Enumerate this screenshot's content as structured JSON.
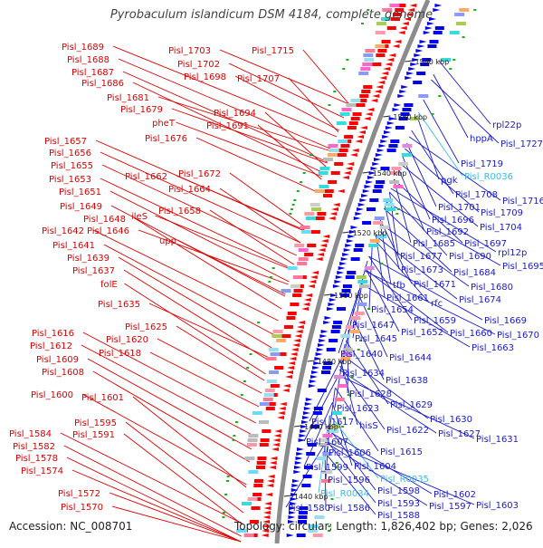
{
  "title": "Pyrobaculum islandicum DSM 4184, complete genome",
  "footer": {
    "accession": "Accession: NC_008701",
    "summary": "Topology: circular; Length: 1,826,402 bp; Genes: 2,026"
  },
  "colors": {
    "left_label": "#dd0000",
    "right_label": "#1a1acc",
    "rna_label": "#33bbee",
    "backbone": "#8c8c8c",
    "forward_arrow": "#ff0000",
    "reverse_arrow": "#0000ee",
    "gc_mark": "#22aa22"
  },
  "ticks": [
    "1580 kbp",
    "1560 kbp",
    "1540 kbp",
    "1520 kbp",
    "1500 kbp",
    "1480 kbp",
    "1460 kbp",
    "1440 kbp"
  ],
  "left_labels": [
    "Pisl_1715",
    "Pisl_1703",
    "Pisl_1689",
    "Pisl_1702",
    "Pisl_1688",
    "Pisl_1707",
    "Pisl_1698",
    "Pisl_1687",
    "Pisl_1686",
    "Pisl_1681",
    "Pisl_1694",
    "Pisl_1679",
    "Pisl_1691",
    "pheT",
    "Pisl_1676",
    "Pisl_1657",
    "Pisl_1656",
    "Pisl_1655",
    "Pisl_1672",
    "Pisl_1662",
    "Pisl_1653",
    "Pisl_1664",
    "Pisl_1651",
    "Pisl_1649",
    "Pisl_1658",
    "Pisl_1648",
    "ileS",
    "Pisl_1642",
    "Pisl_1646",
    "Pisl_1641",
    "upp",
    "Pisl_1639",
    "Pisl_1637",
    "folE",
    "Pisl_1635",
    "Pisl_1625",
    "Pisl_1616",
    "Pisl_1620",
    "Pisl_1612",
    "Pisl_1618",
    "Pisl_1609",
    "Pisl_1608",
    "Pisl_1600",
    "Pisl_1601",
    "Pisl_1595",
    "Pisl_1584",
    "Pisl_1591",
    "Pisl_1582",
    "Pisl_1578",
    "Pisl_1574",
    "Pisl_1572",
    "Pisl_1570"
  ],
  "right_labels": [
    "rpl22p",
    "hppA",
    "Pisl_1727",
    "Pisl_1719",
    "Pisl_R0036",
    "pgk",
    "Pisl_1708",
    "Pisl_1716",
    "Pisl_1701",
    "Pisl_1709",
    "Pisl_1696",
    "Pisl_1704",
    "Pisl_1692",
    "Pisl_1685",
    "Pisl_1697",
    "rpl12p",
    "Pisl_1677",
    "Pisl_1690",
    "Pisl_1695",
    "Pisl_1673",
    "Pisl_1684",
    "tfb",
    "Pisl_1671",
    "Pisl_1680",
    "Pisl_1661",
    "Pisl_1674",
    "rfc",
    "Pisl_1654",
    "Pisl_1669",
    "Pisl_1659",
    "Pisl_1647",
    "Pisl_1652",
    "Pisl_1660",
    "Pisl_1670",
    "Pisl_1645",
    "Pisl_1663",
    "Pisl_1640",
    "Pisl_1644",
    "Pisl_1634",
    "Pisl_1638",
    "Pisl_1628",
    "Pisl_1629",
    "Pisl_1623",
    "Pisl_1630",
    "Pisl_1617",
    "hisS",
    "Pisl_1622",
    "Pisl_1627",
    "Pisl_1631",
    "Pisl_1607",
    "Pisl_1606",
    "Pisl_1615",
    "Pisl_1599",
    "Pisl_1604",
    "Pisl_1596",
    "Pisl_R0035",
    "Pisl_1598",
    "Pisl_1602",
    "Pisl_R0034",
    "Pisl_1593",
    "Pisl_1597",
    "Pisl_1603",
    "Pisl_1580",
    "Pisl_1586",
    "Pisl_1588"
  ],
  "rna_labels": [
    "Pisl_R0036",
    "Pisl_R0035",
    "Pisl_R0034"
  ]
}
